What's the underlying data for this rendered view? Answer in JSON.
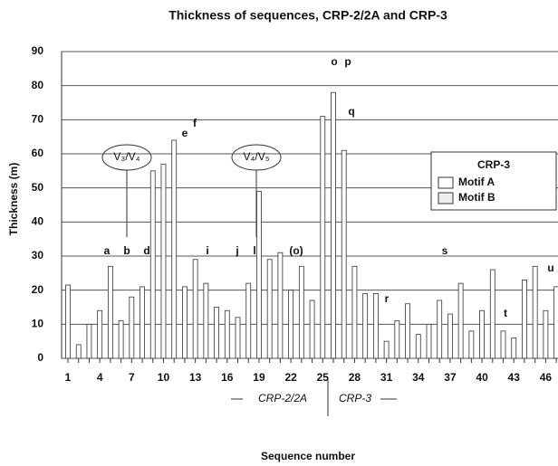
{
  "chart_data": {
    "type": "bar",
    "title": "Thickness of sequences, CRP-2/2A and CRP-3",
    "x_label": "Sequence number",
    "y_label": "Thickness (m)",
    "categories": [
      1,
      null,
      null,
      4,
      null,
      null,
      7,
      null,
      null,
      10,
      null,
      null,
      13,
      null,
      null,
      16,
      null,
      null,
      19,
      null,
      null,
      22,
      null,
      null,
      25,
      null,
      null,
      28,
      null,
      null,
      31,
      null,
      null,
      34,
      null,
      null,
      37,
      null,
      null,
      40,
      null,
      null,
      43,
      null,
      null,
      46,
      null
    ],
    "series": [
      {
        "name": "Motif A",
        "color": "#ffffff",
        "values": [
          21.5,
          4,
          10,
          14,
          27,
          11,
          18,
          21,
          55,
          57,
          64,
          21,
          29,
          22,
          15,
          14,
          12,
          22,
          49,
          29,
          31,
          20,
          27,
          17,
          71,
          78,
          61,
          27,
          19,
          19,
          5,
          11,
          16,
          7,
          10,
          17,
          13,
          22,
          8,
          14,
          26,
          8,
          6,
          23,
          27,
          14,
          21
        ]
      },
      {
        "name": "Motif B",
        "color": "#eeeeee",
        "values": [
          null,
          null,
          null,
          null,
          null,
          null,
          null,
          null,
          null,
          null,
          null,
          null,
          null,
          null,
          null,
          null,
          null,
          null,
          null,
          null,
          null,
          null,
          null,
          null,
          null,
          null,
          null,
          null,
          null,
          null,
          null,
          null,
          null,
          null,
          null,
          null,
          null,
          null,
          null,
          null,
          null,
          null,
          null,
          null,
          null,
          null,
          null
        ]
      }
    ],
    "legend_title": "CRP-3",
    "annotations": [
      "a",
      "b",
      "d",
      "e",
      "f",
      "i",
      "j",
      "l",
      "(o)",
      "o",
      "p",
      "q",
      "r",
      "s",
      "t",
      "u",
      "V₃/V₄",
      "V₄/V₅"
    ],
    "group_labels": [
      "CRP-2/2A",
      "CRP-3"
    ],
    "ylim": [
      0,
      90
    ],
    "yticks": [
      0,
      10,
      20,
      30,
      40,
      50,
      60,
      70,
      80,
      90
    ],
    "grid": true
  }
}
